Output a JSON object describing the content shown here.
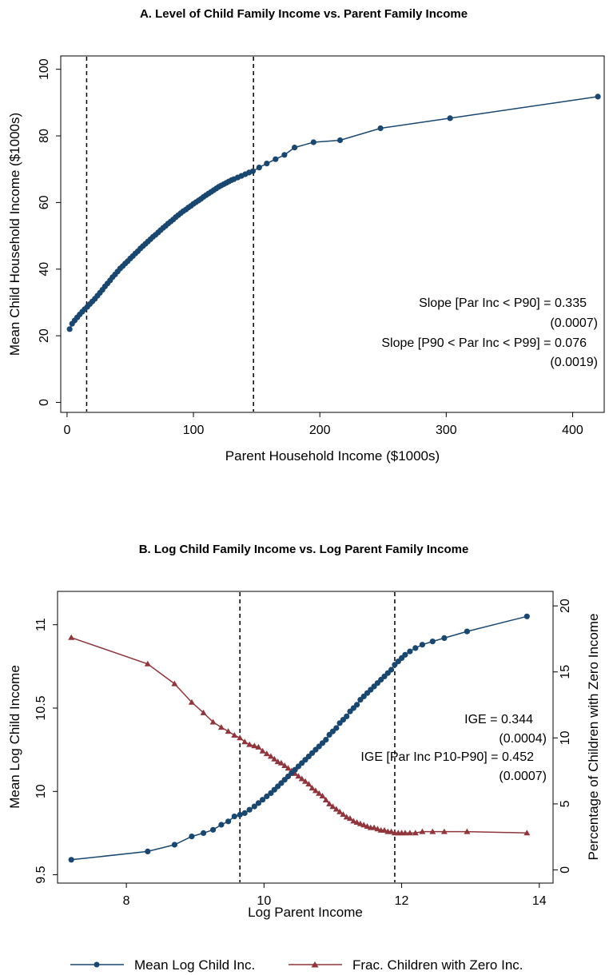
{
  "chart_data": [
    {
      "type": "line",
      "title": "A. Level of Child Family Income vs. Parent Family Income",
      "xlabel": "Parent Household Income ($1000s)",
      "ylabel": "Mean Child Household Income ($1000s)",
      "xlim": [
        -5,
        425
      ],
      "ylim": [
        -3,
        104
      ],
      "xticks": [
        "0",
        "100",
        "200",
        "300",
        "400"
      ],
      "yticks": [
        "0",
        "20",
        "40",
        "60",
        "80",
        "100"
      ],
      "vlines": [
        15.5,
        147.5
      ],
      "annotations": [
        "Slope [Par Inc < P90] = 0.335",
        "(0.0007)",
        "Slope [P90 < Par Inc < P99] = 0.076",
        "(0.0019)"
      ],
      "series": [
        {
          "x": [
            2,
            4,
            6,
            8,
            10,
            12,
            14,
            16,
            18,
            20,
            22,
            24,
            26,
            28,
            30,
            32,
            34,
            36,
            38,
            40,
            42,
            44,
            46,
            48,
            50,
            52,
            54,
            56,
            58,
            60,
            62,
            64,
            66,
            68,
            70,
            72,
            74,
            76,
            78,
            80,
            82,
            84,
            86,
            88,
            90,
            92,
            94,
            96,
            98,
            100,
            102,
            104,
            106,
            108,
            110,
            112,
            114,
            116,
            118,
            120,
            122,
            124,
            126,
            128,
            130,
            132,
            135,
            138,
            141,
            144,
            147,
            152,
            158,
            165,
            172,
            180,
            195,
            216,
            248,
            303,
            420
          ],
          "values": [
            22.0,
            23.6,
            24.6,
            25.5,
            26.4,
            27.2,
            28.0,
            28.7,
            29.5,
            30.3,
            31.1,
            32.0,
            32.9,
            33.8,
            34.8,
            35.7,
            36.6,
            37.6,
            38.4,
            39.3,
            40.2,
            40.9,
            41.7,
            42.4,
            43.2,
            43.9,
            44.7,
            45.4,
            46.2,
            46.9,
            47.6,
            48.3,
            49.0,
            49.7,
            50.3,
            51.0,
            51.7,
            52.4,
            53.0,
            53.7,
            54.3,
            54.9,
            55.6,
            56.2,
            56.8,
            57.4,
            57.9,
            58.5,
            59.0,
            59.6,
            60.1,
            60.6,
            61.1,
            61.7,
            62.2,
            62.7,
            63.2,
            63.7,
            64.2,
            64.7,
            65.1,
            65.5,
            65.9,
            66.3,
            66.7,
            67.0,
            67.5,
            68.0,
            68.5,
            69.0,
            69.4,
            70.5,
            71.7,
            73.0,
            74.3,
            76.5,
            78.1,
            78.7,
            82.3,
            85.3,
            91.8
          ]
        }
      ]
    },
    {
      "type": "line",
      "title": "B. Log Child Family Income vs. Log Parent Family Income",
      "xlabel": "Log Parent Income",
      "ylabel": "Mean Log Child Income",
      "ylabel_right": "Percentage of Children with Zero Income",
      "xlim": [
        7.0,
        14.2
      ],
      "ylim": [
        9.45,
        11.2
      ],
      "ylim_right": [
        -1,
        21.1
      ],
      "xticks": [
        "8",
        "10",
        "12",
        "14"
      ],
      "yticks": [
        "9.5",
        "10",
        "10.5",
        "11"
      ],
      "yticks_right": [
        "0",
        "5",
        "10",
        "15",
        "20"
      ],
      "vlines": [
        9.65,
        11.9
      ],
      "annotations": [
        "IGE = 0.344",
        "(0.0004)",
        "IGE [Par Inc P10-P90] = 0.452",
        "(0.0007)"
      ],
      "legend": [
        "Mean Log Child Inc.",
        "Frac. Children with Zero Inc."
      ],
      "legend_position": "bottom",
      "colors": {
        "series1": "#1a476f",
        "series2": "#90353b"
      },
      "series": [
        {
          "name": "Mean Log Child Inc.",
          "axis": "left",
          "x": [
            7.2,
            8.31,
            8.7,
            8.95,
            9.12,
            9.26,
            9.38,
            9.48,
            9.57,
            9.65,
            9.72,
            9.79,
            9.86,
            9.92,
            9.98,
            10.04,
            10.1,
            10.15,
            10.2,
            10.25,
            10.3,
            10.35,
            10.4,
            10.45,
            10.5,
            10.55,
            10.6,
            10.65,
            10.7,
            10.75,
            10.8,
            10.85,
            10.9,
            10.95,
            11.0,
            11.05,
            11.1,
            11.15,
            11.2,
            11.25,
            11.3,
            11.35,
            11.4,
            11.45,
            11.5,
            11.55,
            11.6,
            11.65,
            11.7,
            11.75,
            11.8,
            11.85,
            11.9,
            11.95,
            12.0,
            12.05,
            12.12,
            12.2,
            12.3,
            12.45,
            12.62,
            12.95,
            13.82
          ],
          "values": [
            9.59,
            9.64,
            9.68,
            9.73,
            9.75,
            9.77,
            9.8,
            9.82,
            9.85,
            9.86,
            9.87,
            9.89,
            9.91,
            9.93,
            9.95,
            9.97,
            9.99,
            10.01,
            10.03,
            10.05,
            10.07,
            10.09,
            10.11,
            10.13,
            10.15,
            10.17,
            10.19,
            10.21,
            10.23,
            10.25,
            10.27,
            10.29,
            10.31,
            10.34,
            10.36,
            10.38,
            10.41,
            10.43,
            10.45,
            10.48,
            10.5,
            10.52,
            10.55,
            10.57,
            10.59,
            10.61,
            10.63,
            10.65,
            10.67,
            10.69,
            10.71,
            10.73,
            10.76,
            10.78,
            10.8,
            10.82,
            10.84,
            10.86,
            10.88,
            10.9,
            10.92,
            10.96,
            11.05
          ]
        },
        {
          "name": "Frac. Children with Zero Inc.",
          "axis": "right",
          "x": [
            7.2,
            8.31,
            8.7,
            8.95,
            9.12,
            9.26,
            9.38,
            9.48,
            9.57,
            9.65,
            9.72,
            9.79,
            9.86,
            9.92,
            9.98,
            10.04,
            10.1,
            10.15,
            10.2,
            10.25,
            10.3,
            10.35,
            10.4,
            10.45,
            10.5,
            10.55,
            10.6,
            10.65,
            10.7,
            10.75,
            10.8,
            10.85,
            10.9,
            10.95,
            11.0,
            11.05,
            11.1,
            11.15,
            11.2,
            11.25,
            11.3,
            11.35,
            11.4,
            11.45,
            11.5,
            11.55,
            11.6,
            11.65,
            11.7,
            11.75,
            11.8,
            11.85,
            11.9,
            11.95,
            12.0,
            12.05,
            12.12,
            12.2,
            12.3,
            12.45,
            12.62,
            12.95,
            13.82
          ],
          "values": [
            17.6,
            15.6,
            14.1,
            12.7,
            11.9,
            11.2,
            10.8,
            10.5,
            10.2,
            10.0,
            9.7,
            9.5,
            9.4,
            9.3,
            9.0,
            8.8,
            8.6,
            8.4,
            8.2,
            8.1,
            7.9,
            7.7,
            7.5,
            7.3,
            7.1,
            6.9,
            6.7,
            6.5,
            6.2,
            6.0,
            5.8,
            5.6,
            5.3,
            5.0,
            4.8,
            4.6,
            4.4,
            4.2,
            4.0,
            3.9,
            3.7,
            3.6,
            3.5,
            3.4,
            3.3,
            3.2,
            3.2,
            3.1,
            3.0,
            3.0,
            2.9,
            2.9,
            2.8,
            2.8,
            2.8,
            2.8,
            2.8,
            2.8,
            2.9,
            2.9,
            2.9,
            2.9,
            2.8
          ]
        }
      ]
    }
  ]
}
